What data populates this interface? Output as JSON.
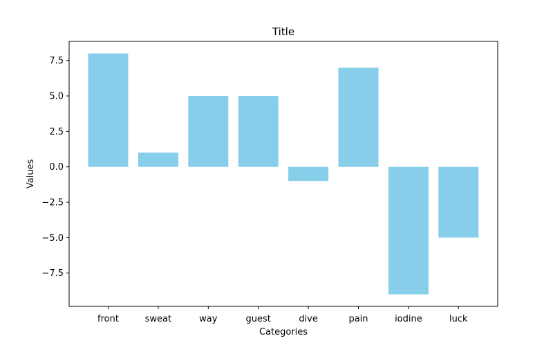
{
  "chart_data": {
    "type": "bar",
    "title": "Title",
    "xlabel": "Categories",
    "ylabel": "Values",
    "categories": [
      "front",
      "sweat",
      "way",
      "guest",
      "dive",
      "pain",
      "iodine",
      "luck"
    ],
    "values": [
      8,
      1,
      5,
      5,
      -1,
      7,
      -9,
      -5
    ],
    "ylim": [
      -9.85,
      8.85
    ],
    "yticks": [
      -7.5,
      -5.0,
      -2.5,
      0.0,
      2.5,
      5.0,
      7.5
    ],
    "ytick_labels": [
      "−7.5",
      "−5.0",
      "−2.5",
      "0.0",
      "2.5",
      "5.0",
      "7.5"
    ],
    "bar_color": "#87ceeb",
    "grid": false
  }
}
